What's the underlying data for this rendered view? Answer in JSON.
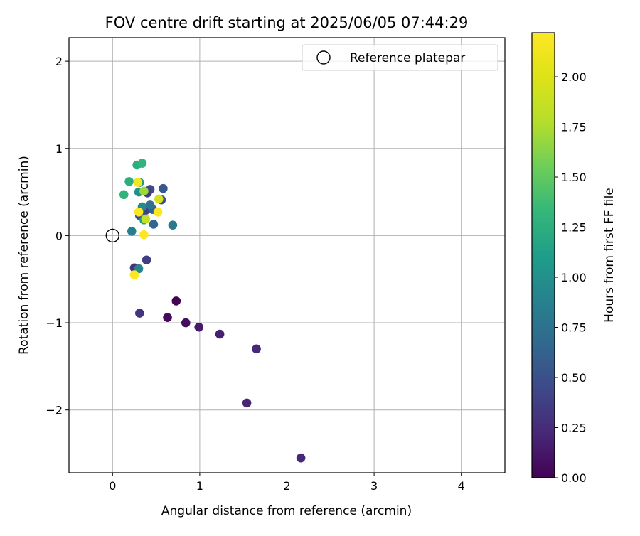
{
  "chart_data": {
    "type": "scatter",
    "title": "FOV centre drift starting at 2025/06/05 07:44:29",
    "xlabel": "Angular distance from reference (arcmin)",
    "ylabel": "Rotation from reference (arcmin)",
    "xlim": [
      -0.5,
      4.5
    ],
    "ylim": [
      -2.72,
      2.27
    ],
    "xticks": [
      0,
      1,
      2,
      3,
      4
    ],
    "xtick_labels": [
      "0",
      "1",
      "2",
      "3",
      "4"
    ],
    "yticks": [
      2,
      1,
      0,
      -1,
      -2
    ],
    "ytick_labels": [
      "2",
      "1",
      "0",
      "−1",
      "−2"
    ],
    "grid": true,
    "legend": {
      "position": "upper right",
      "entries": [
        {
          "label": "Reference platepar",
          "marker": "open-circle",
          "x": 0,
          "y": 0
        }
      ]
    },
    "colorbar": {
      "label": "Hours from first FF file",
      "colormap": "viridis",
      "range": [
        0,
        2.22
      ],
      "ticks": [
        0.0,
        0.25,
        0.5,
        0.75,
        1.0,
        1.25,
        1.5,
        1.75,
        2.0
      ],
      "tick_labels": [
        "0.00",
        "0.25",
        "0.50",
        "0.75",
        "1.00",
        "1.25",
        "1.50",
        "1.75",
        "2.00"
      ]
    },
    "points": [
      {
        "x": 0.73,
        "y": -0.75,
        "c": 0.0
      },
      {
        "x": 0.63,
        "y": -0.94,
        "c": 0.05
      },
      {
        "x": 0.84,
        "y": -1.0,
        "c": 0.08
      },
      {
        "x": 0.99,
        "y": -1.05,
        "c": 0.15
      },
      {
        "x": 1.23,
        "y": -1.13,
        "c": 0.18
      },
      {
        "x": 1.65,
        "y": -1.3,
        "c": 0.22
      },
      {
        "x": 1.54,
        "y": -1.92,
        "c": 0.2
      },
      {
        "x": 2.16,
        "y": -2.55,
        "c": 0.22
      },
      {
        "x": 0.31,
        "y": -0.89,
        "c": 0.3
      },
      {
        "x": 0.25,
        "y": -0.37,
        "c": 0.28
      },
      {
        "x": 0.39,
        "y": -0.28,
        "c": 0.38
      },
      {
        "x": 0.3,
        "y": -0.38,
        "c": 0.9
      },
      {
        "x": 0.25,
        "y": -0.45,
        "c": 2.2
      },
      {
        "x": 0.43,
        "y": 0.53,
        "c": 0.45
      },
      {
        "x": 0.58,
        "y": 0.54,
        "c": 0.55
      },
      {
        "x": 0.56,
        "y": 0.41,
        "c": 0.5
      },
      {
        "x": 0.4,
        "y": 0.49,
        "c": 0.35
      },
      {
        "x": 0.38,
        "y": 0.29,
        "c": 0.4
      },
      {
        "x": 0.46,
        "y": 0.3,
        "c": 0.6
      },
      {
        "x": 0.47,
        "y": 0.13,
        "c": 0.65
      },
      {
        "x": 0.69,
        "y": 0.12,
        "c": 0.8
      },
      {
        "x": 0.22,
        "y": 0.05,
        "c": 0.85
      },
      {
        "x": 0.31,
        "y": 0.23,
        "c": 0.45
      },
      {
        "x": 0.43,
        "y": 0.35,
        "c": 0.75
      },
      {
        "x": 0.34,
        "y": 0.33,
        "c": 0.95
      },
      {
        "x": 0.3,
        "y": 0.5,
        "c": 1.0
      },
      {
        "x": 0.31,
        "y": 0.61,
        "c": 1.05
      },
      {
        "x": 0.36,
        "y": 0.18,
        "c": 1.1
      },
      {
        "x": 0.28,
        "y": 0.81,
        "c": 1.25
      },
      {
        "x": 0.34,
        "y": 0.83,
        "c": 1.3
      },
      {
        "x": 0.19,
        "y": 0.62,
        "c": 1.25
      },
      {
        "x": 0.13,
        "y": 0.47,
        "c": 1.3
      },
      {
        "x": 0.36,
        "y": 0.51,
        "c": 1.7
      },
      {
        "x": 0.38,
        "y": 0.19,
        "c": 1.85
      },
      {
        "x": 0.53,
        "y": 0.42,
        "c": 1.95
      },
      {
        "x": 0.29,
        "y": 0.61,
        "c": 2.15
      },
      {
        "x": 0.3,
        "y": 0.27,
        "c": 2.2
      },
      {
        "x": 0.52,
        "y": 0.27,
        "c": 2.2
      },
      {
        "x": 0.36,
        "y": 0.01,
        "c": 2.22
      }
    ]
  }
}
